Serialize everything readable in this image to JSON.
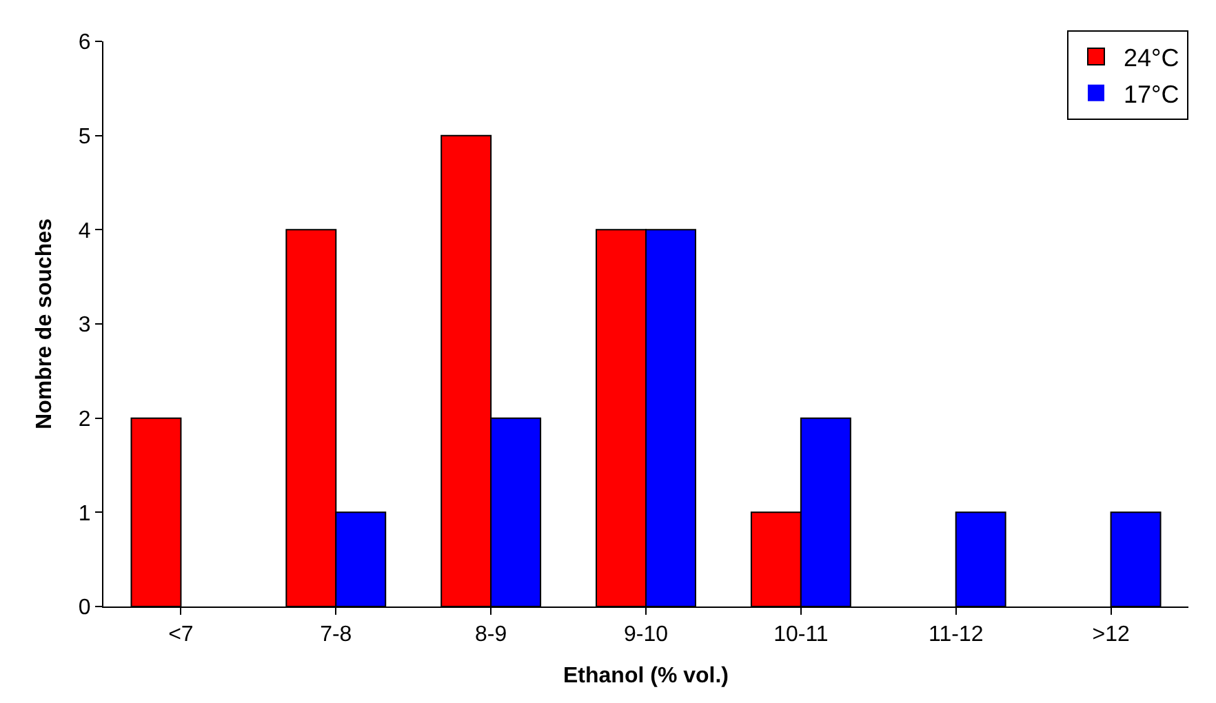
{
  "chart_data": {
    "type": "bar",
    "xlabel": "Ethanol (% vol.)",
    "ylabel": "Nombre de souches",
    "categories": [
      "<7",
      "7-8",
      "8-9",
      "9-10",
      "10-11",
      "11-12",
      ">12"
    ],
    "series": [
      {
        "name": "24°C",
        "color": "#ff0000",
        "values": [
          2,
          4,
          5,
          4,
          1,
          0,
          0
        ]
      },
      {
        "name": "17°C",
        "color": "#0000ff",
        "values": [
          0,
          1,
          2,
          4,
          2,
          1,
          1
        ]
      }
    ],
    "ylim": [
      0,
      6
    ],
    "yticks": [
      0,
      1,
      2,
      3,
      4,
      5,
      6
    ],
    "grid": false,
    "legend": "top right"
  }
}
